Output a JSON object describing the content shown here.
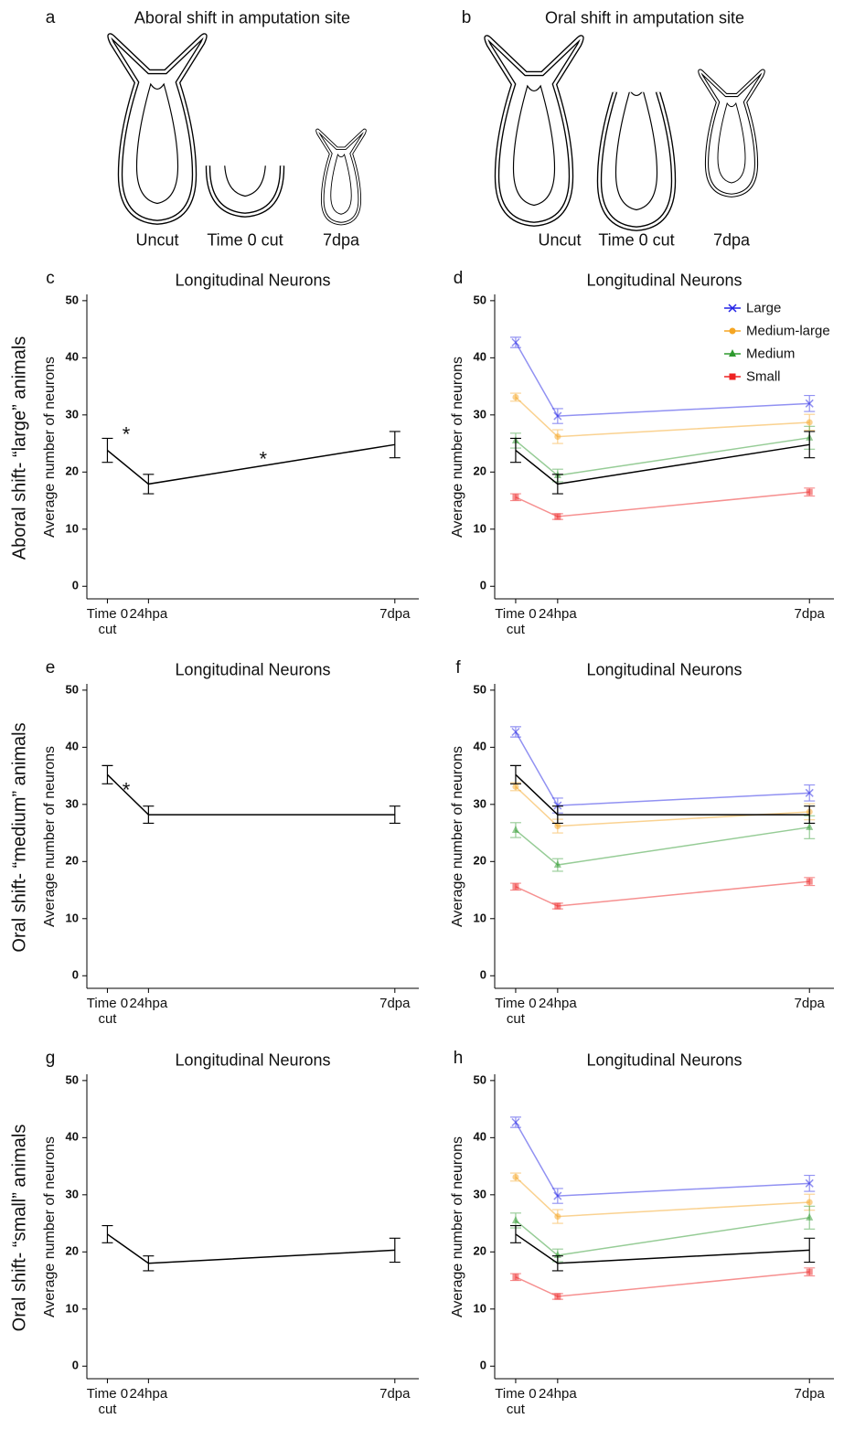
{
  "panels": [
    {
      "letter": "a",
      "title": "Aboral shift in amputation site",
      "labels": [
        "Uncut",
        "Time 0 cut",
        "7dpa"
      ]
    },
    {
      "letter": "b",
      "title": "Oral shift in amputation site",
      "labels": [
        "Uncut",
        "Time 0 cut",
        "7dpa"
      ]
    }
  ],
  "row_labels": [
    "Aboral shift- “large” animals",
    "Oral shift- “medium” animals",
    "Oral shift- “small” animals"
  ],
  "chart_data": [
    {
      "type": "line",
      "letter": "c",
      "title": "Longitudinal Neurons",
      "ylabel": "Average number of neurons",
      "x": [
        0,
        24,
        168
      ],
      "xlim": [
        -12,
        182
      ],
      "ylim": [
        -2.2,
        51.1
      ],
      "xticks": [
        {
          "value": 0,
          "label": "Time 0 cut"
        },
        {
          "value": 24,
          "label": "24hpa"
        },
        {
          "value": 168,
          "label": "7dpa"
        }
      ],
      "yticks": [
        0,
        10,
        20,
        30,
        40,
        50
      ],
      "legend": false,
      "series": [
        {
          "color": "#000000",
          "opacity": 1,
          "values": [
            23.8,
            17.9,
            24.8
          ],
          "errors": [
            2.1,
            1.7,
            2.3
          ]
        }
      ],
      "annotations": [
        {
          "text": "*",
          "x": 11,
          "y": 27.2
        },
        {
          "text": "*",
          "x": 91,
          "y": 23
        }
      ]
    },
    {
      "type": "line",
      "letter": "d",
      "title": "Longitudinal Neurons",
      "ylabel": "Average number of neurons",
      "x": [
        0,
        24,
        168
      ],
      "xlim": [
        -12,
        182
      ],
      "ylim": [
        -2.2,
        51.1
      ],
      "xticks": [
        {
          "value": 0,
          "label": "Time 0 cut"
        },
        {
          "value": 24,
          "label": "24hpa"
        },
        {
          "value": 168,
          "label": "7dpa"
        }
      ],
      "yticks": [
        0,
        10,
        20,
        30,
        40,
        50
      ],
      "legend": true,
      "series": [
        {
          "name": "Large",
          "color": "#2323e6",
          "marker": "x",
          "opacity": 0.5,
          "values": [
            42.7,
            29.8,
            32
          ],
          "errors": [
            0.9,
            1.3,
            1.4
          ]
        },
        {
          "name": "Medium-large",
          "color": "#f5a623",
          "marker": "circle",
          "opacity": 0.5,
          "values": [
            33.1,
            26.2,
            28.7
          ],
          "errors": [
            0.7,
            1.2,
            1.4
          ]
        },
        {
          "name": "Medium",
          "color": "#2e9a2e",
          "marker": "triangle",
          "opacity": 0.5,
          "values": [
            25.5,
            19.4,
            26
          ],
          "errors": [
            1.3,
            1.1,
            2
          ]
        },
        {
          "name": "Small",
          "color": "#ee2222",
          "marker": "square",
          "opacity": 0.5,
          "values": [
            15.6,
            12.2,
            16.5
          ],
          "errors": [
            0.6,
            0.5,
            0.7
          ]
        },
        {
          "color": "#000000",
          "opacity": 1,
          "values": [
            23.8,
            17.9,
            24.8
          ],
          "errors": [
            2.1,
            1.7,
            2.3
          ]
        }
      ]
    },
    {
      "type": "line",
      "letter": "e",
      "title": "Longitudinal Neurons",
      "ylabel": "Average number of neurons",
      "x": [
        0,
        24,
        168
      ],
      "xlim": [
        -12,
        182
      ],
      "ylim": [
        -2.2,
        51.1
      ],
      "xticks": [
        {
          "value": 0,
          "label": "Time 0 cut"
        },
        {
          "value": 24,
          "label": "24hpa"
        },
        {
          "value": 168,
          "label": "7dpa"
        }
      ],
      "yticks": [
        0,
        10,
        20,
        30,
        40,
        50
      ],
      "legend": false,
      "series": [
        {
          "color": "#000000",
          "opacity": 1,
          "values": [
            35.2,
            28.2,
            28.2
          ],
          "errors": [
            1.6,
            1.5,
            1.5
          ]
        }
      ],
      "annotations": [
        {
          "text": "*",
          "x": 11,
          "y": 33.2
        }
      ]
    },
    {
      "type": "line",
      "letter": "f",
      "title": "Longitudinal Neurons",
      "ylabel": "Average number of neurons",
      "x": [
        0,
        24,
        168
      ],
      "xlim": [
        -12,
        182
      ],
      "ylim": [
        -2.2,
        51.1
      ],
      "xticks": [
        {
          "value": 0,
          "label": "Time 0 cut"
        },
        {
          "value": 24,
          "label": "24hpa"
        },
        {
          "value": 168,
          "label": "7dpa"
        }
      ],
      "yticks": [
        0,
        10,
        20,
        30,
        40,
        50
      ],
      "legend": false,
      "series": [
        {
          "name": "Large",
          "color": "#2323e6",
          "marker": "x",
          "opacity": 0.5,
          "values": [
            42.7,
            29.8,
            32
          ],
          "errors": [
            0.9,
            1.3,
            1.4
          ]
        },
        {
          "name": "Medium-large",
          "color": "#f5a623",
          "marker": "circle",
          "opacity": 0.5,
          "values": [
            33.1,
            26.2,
            28.7
          ],
          "errors": [
            0.7,
            1.2,
            1.4
          ]
        },
        {
          "name": "Medium",
          "color": "#2e9a2e",
          "marker": "triangle",
          "opacity": 0.5,
          "values": [
            25.5,
            19.4,
            26
          ],
          "errors": [
            1.3,
            1.1,
            2
          ]
        },
        {
          "name": "Small",
          "color": "#ee2222",
          "marker": "square",
          "opacity": 0.5,
          "values": [
            15.6,
            12.2,
            16.5
          ],
          "errors": [
            0.6,
            0.5,
            0.7
          ]
        },
        {
          "color": "#000000",
          "opacity": 1,
          "values": [
            35.2,
            28.2,
            28.2
          ],
          "errors": [
            1.6,
            1.5,
            1.5
          ]
        }
      ]
    },
    {
      "type": "line",
      "letter": "g",
      "title": "Longitudinal Neurons",
      "ylabel": "Average number of neurons",
      "x": [
        0,
        24,
        168
      ],
      "xlim": [
        -12,
        182
      ],
      "ylim": [
        -2.2,
        51.1
      ],
      "xticks": [
        {
          "value": 0,
          "label": "Time 0 cut"
        },
        {
          "value": 24,
          "label": "24hpa"
        },
        {
          "value": 168,
          "label": "7dpa"
        }
      ],
      "yticks": [
        0,
        10,
        20,
        30,
        40,
        50
      ],
      "legend": false,
      "series": [
        {
          "color": "#000000",
          "opacity": 1,
          "values": [
            23.1,
            18,
            20.3
          ],
          "errors": [
            1.5,
            1.3,
            2.1
          ]
        }
      ]
    },
    {
      "type": "line",
      "letter": "h",
      "title": "Longitudinal Neurons",
      "ylabel": "Average number of neurons",
      "x": [
        0,
        24,
        168
      ],
      "xlim": [
        -12,
        182
      ],
      "ylim": [
        -2.2,
        51.1
      ],
      "xticks": [
        {
          "value": 0,
          "label": "Time 0 cut"
        },
        {
          "value": 24,
          "label": "24hpa"
        },
        {
          "value": 168,
          "label": "7dpa"
        }
      ],
      "yticks": [
        0,
        10,
        20,
        30,
        40,
        50
      ],
      "legend": false,
      "series": [
        {
          "name": "Large",
          "color": "#2323e6",
          "marker": "x",
          "opacity": 0.5,
          "values": [
            42.7,
            29.8,
            32
          ],
          "errors": [
            0.9,
            1.3,
            1.4
          ]
        },
        {
          "name": "Medium-large",
          "color": "#f5a623",
          "marker": "circle",
          "opacity": 0.5,
          "values": [
            33.1,
            26.2,
            28.7
          ],
          "errors": [
            0.7,
            1.2,
            1.4
          ]
        },
        {
          "name": "Medium",
          "color": "#2e9a2e",
          "marker": "triangle",
          "opacity": 0.5,
          "values": [
            25.5,
            19.4,
            26
          ],
          "errors": [
            1.3,
            1.1,
            2
          ]
        },
        {
          "name": "Small",
          "color": "#ee2222",
          "marker": "square",
          "opacity": 0.5,
          "values": [
            15.6,
            12.2,
            16.5
          ],
          "errors": [
            0.6,
            0.5,
            0.7
          ]
        },
        {
          "color": "#000000",
          "opacity": 1,
          "values": [
            23.1,
            18,
            20.3
          ],
          "errors": [
            1.5,
            1.3,
            2.1
          ]
        }
      ]
    }
  ]
}
